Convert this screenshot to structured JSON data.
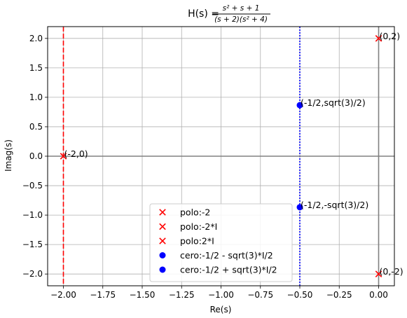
{
  "chart_data": {
    "type": "scatter",
    "title": {
      "prefix": "H(s) = ",
      "numerator": "s² + s + 1",
      "denominator": "(s + 2)(s² + 4)"
    },
    "xlabel": "Re(s)",
    "ylabel": "Imag(s)",
    "xlim": [
      -2.1,
      0.1
    ],
    "ylim": [
      -2.2,
      2.2
    ],
    "xticks": [
      -2.0,
      -1.75,
      -1.5,
      -1.25,
      -1.0,
      -0.75,
      -0.5,
      -0.25,
      0.0
    ],
    "xtick_labels": [
      "−2.00",
      "−1.75",
      "−1.50",
      "−1.25",
      "−1.00",
      "−0.75",
      "−0.50",
      "−0.25",
      "0.00"
    ],
    "yticks": [
      -2.0,
      -1.5,
      -1.0,
      -0.5,
      0.0,
      0.5,
      1.0,
      1.5,
      2.0
    ],
    "ytick_labels": [
      "−2.0",
      "−1.5",
      "−1.0",
      "−0.5",
      "0.0",
      "0.5",
      "1.0",
      "1.5",
      "2.0"
    ],
    "grid": true,
    "legend_position": "lower-center",
    "series": [
      {
        "name": "polo:-2",
        "marker": "x",
        "color": "#ff0000",
        "points": [
          [
            -2,
            0
          ]
        ]
      },
      {
        "name": "polo:-2*I",
        "marker": "x",
        "color": "#ff0000",
        "points": [
          [
            0,
            -2
          ]
        ]
      },
      {
        "name": "polo:2*I",
        "marker": "x",
        "color": "#ff0000",
        "points": [
          [
            0,
            2
          ]
        ]
      },
      {
        "name": "cero:-1/2 - sqrt(3)*I/2",
        "marker": "o",
        "color": "#0000ff",
        "points": [
          [
            -0.5,
            -0.866
          ]
        ]
      },
      {
        "name": "cero:-1/2 + sqrt(3)*I/2",
        "marker": "o",
        "color": "#0000ff",
        "points": [
          [
            -0.5,
            0.866
          ]
        ]
      }
    ],
    "reference_lines": [
      {
        "orientation": "vertical",
        "x": -2.0,
        "style": "dashed",
        "color": "#ff0000"
      },
      {
        "orientation": "vertical",
        "x": -0.5,
        "style": "dotted",
        "color": "#0000ff"
      },
      {
        "orientation": "vertical",
        "x": 0.0,
        "style": "solid",
        "color": "#808080"
      },
      {
        "orientation": "horizontal",
        "y": 0.0,
        "style": "solid",
        "color": "#808080"
      }
    ],
    "annotations": [
      {
        "text": "(-2,0)",
        "x": -2.0,
        "y": 0.0
      },
      {
        "text": "(0,2)",
        "x": 0.0,
        "y": 2.0
      },
      {
        "text": "(0,-2)",
        "x": 0.0,
        "y": -2.0
      },
      {
        "text": "(-1/2,sqrt(3)/2)",
        "x": -0.5,
        "y": 0.866
      },
      {
        "text": "(-1/2,-sqrt(3)/2)",
        "x": -0.5,
        "y": -0.866
      }
    ]
  }
}
